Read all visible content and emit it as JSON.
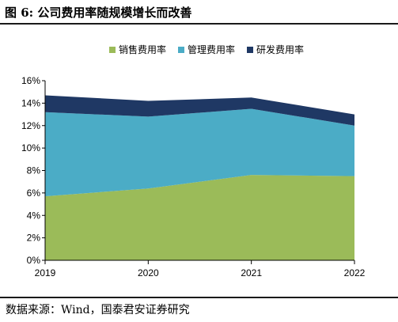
{
  "figure": {
    "title": "图 6:  公司费用率随规模增长而改善",
    "source": "数据来源：Wind，国泰君安证券研究"
  },
  "chart_data": {
    "type": "area",
    "stacked": true,
    "categories": [
      "2019",
      "2020",
      "2021",
      "2022"
    ],
    "series": [
      {
        "name": "销售费用率",
        "color": "#9bbb59",
        "values": [
          5.7,
          6.4,
          7.6,
          7.5
        ]
      },
      {
        "name": "管理费用率",
        "color": "#4bacc6",
        "values": [
          7.5,
          6.4,
          5.9,
          4.5
        ]
      },
      {
        "name": "研发费用率",
        "color": "#1f3864",
        "values": [
          1.5,
          1.4,
          1.0,
          1.0
        ]
      }
    ],
    "ylim": [
      0,
      16
    ],
    "yticks": [
      "0%",
      "2%",
      "4%",
      "6%",
      "8%",
      "10%",
      "12%",
      "14%",
      "16%"
    ],
    "grid": false,
    "legend": "top-center"
  }
}
